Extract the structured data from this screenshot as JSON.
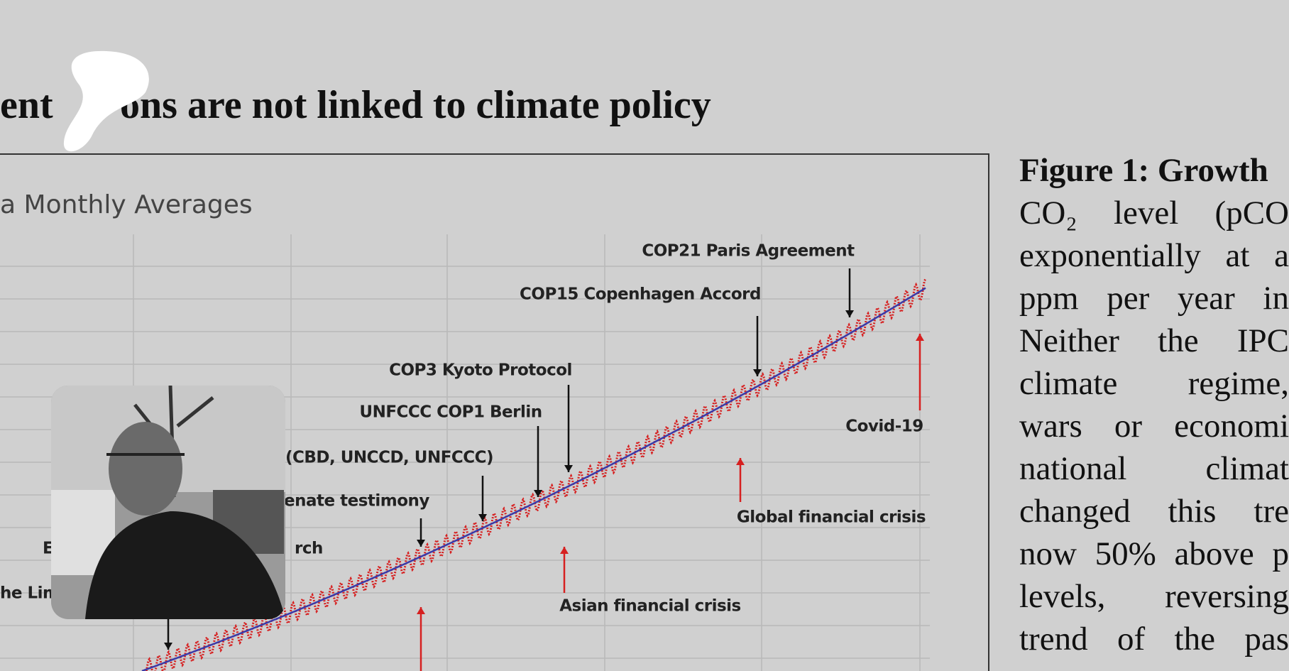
{
  "heading": {
    "left": "ent",
    "right": "ons are not linked to climate policy"
  },
  "figure": {
    "title": "a Monthly Averages",
    "annotations": [
      "COP21 Paris Agreement",
      "COP15 Copenhagen Accord",
      "COP3 Kyoto Protocol",
      "UNFCCC COP1 Berlin",
      "(CBD, UNCCD, UNFCCC)",
      "enate testimony",
      "E",
      "rch",
      "he Lim",
      "Covid-19",
      "Global financial crisis",
      "Asian financial crisis"
    ]
  },
  "caption": {
    "label": "Figure 1: Growth",
    "lines": [
      "CO₂ level (pCO",
      "exponentially at a",
      "ppm per year in",
      "Neither the IPC",
      "climate regime,",
      "wars or economi",
      "national climat",
      "changed this tre",
      "now 50% above p",
      "levels, reversing",
      "trend of the pas"
    ]
  }
}
